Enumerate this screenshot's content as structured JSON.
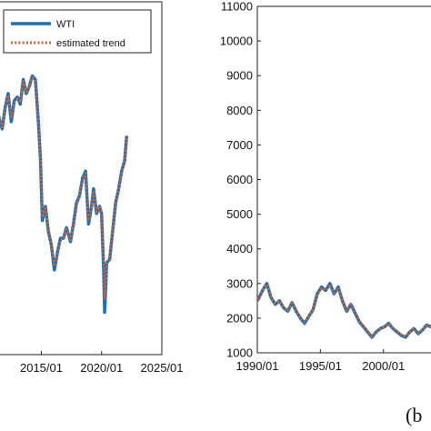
{
  "chart_data": [
    {
      "type": "line",
      "panel": "left",
      "title": "",
      "xlabel": "",
      "ylabel": "",
      "x_ticks": [
        "2015/01",
        "2020/01",
        "2025/01"
      ],
      "xlim": [
        "2011/06",
        "2025/01"
      ],
      "ylim": [
        0,
        1
      ],
      "y_ticks_visible": false,
      "legend_position": "top-left",
      "series": [
        {
          "name": "WTI",
          "color": "#1f6fb4",
          "style": "solid",
          "points": [
            [
              "2011/06",
              0.68
            ],
            [
              "2011/10",
              0.64
            ],
            [
              "2012/01",
              0.7
            ],
            [
              "2012/04",
              0.74
            ],
            [
              "2012/07",
              0.66
            ],
            [
              "2012/10",
              0.72
            ],
            [
              "2013/01",
              0.73
            ],
            [
              "2013/04",
              0.71
            ],
            [
              "2013/07",
              0.78
            ],
            [
              "2013/10",
              0.74
            ],
            [
              "2014/01",
              0.76
            ],
            [
              "2014/04",
              0.79
            ],
            [
              "2014/07",
              0.78
            ],
            [
              "2014/10",
              0.66
            ],
            [
              "2014/12",
              0.56
            ],
            [
              "2015/02",
              0.38
            ],
            [
              "2015/05",
              0.42
            ],
            [
              "2015/08",
              0.35
            ],
            [
              "2015/11",
              0.31
            ],
            [
              "2016/02",
              0.24
            ],
            [
              "2016/05",
              0.29
            ],
            [
              "2016/08",
              0.33
            ],
            [
              "2016/11",
              0.33
            ],
            [
              "2017/02",
              0.36
            ],
            [
              "2017/06",
              0.32
            ],
            [
              "2017/09",
              0.37
            ],
            [
              "2017/12",
              0.43
            ],
            [
              "2018/03",
              0.45
            ],
            [
              "2018/06",
              0.5
            ],
            [
              "2018/09",
              0.52
            ],
            [
              "2018/12",
              0.37
            ],
            [
              "2019/03",
              0.42
            ],
            [
              "2019/05",
              0.47
            ],
            [
              "2019/08",
              0.4
            ],
            [
              "2019/11",
              0.42
            ],
            [
              "2020/01",
              0.4
            ],
            [
              "2020/03",
              0.24
            ],
            [
              "2020/04",
              0.12
            ],
            [
              "2020/06",
              0.26
            ],
            [
              "2020/09",
              0.27
            ],
            [
              "2020/12",
              0.35
            ],
            [
              "2021/03",
              0.43
            ],
            [
              "2021/06",
              0.47
            ],
            [
              "2021/09",
              0.52
            ],
            [
              "2021/12",
              0.55
            ],
            [
              "2022/02",
              0.62
            ]
          ]
        },
        {
          "name": "estimated trend",
          "color": "#d4622a",
          "style": "dotted",
          "points": [
            [
              "2011/06",
              0.68
            ],
            [
              "2011/10",
              0.645
            ],
            [
              "2012/01",
              0.695
            ],
            [
              "2012/04",
              0.735
            ],
            [
              "2012/07",
              0.67
            ],
            [
              "2012/10",
              0.715
            ],
            [
              "2013/01",
              0.725
            ],
            [
              "2013/04",
              0.715
            ],
            [
              "2013/07",
              0.775
            ],
            [
              "2013/10",
              0.745
            ],
            [
              "2014/01",
              0.76
            ],
            [
              "2014/04",
              0.785
            ],
            [
              "2014/07",
              0.775
            ],
            [
              "2014/10",
              0.665
            ],
            [
              "2014/12",
              0.565
            ],
            [
              "2015/02",
              0.39
            ],
            [
              "2015/05",
              0.415
            ],
            [
              "2015/08",
              0.355
            ],
            [
              "2015/11",
              0.315
            ],
            [
              "2016/02",
              0.25
            ],
            [
              "2016/05",
              0.29
            ],
            [
              "2016/08",
              0.325
            ],
            [
              "2016/11",
              0.33
            ],
            [
              "2017/02",
              0.355
            ],
            [
              "2017/06",
              0.325
            ],
            [
              "2017/09",
              0.365
            ],
            [
              "2017/12",
              0.425
            ],
            [
              "2018/03",
              0.45
            ],
            [
              "2018/06",
              0.495
            ],
            [
              "2018/09",
              0.515
            ],
            [
              "2018/12",
              0.38
            ],
            [
              "2019/03",
              0.415
            ],
            [
              "2019/05",
              0.465
            ],
            [
              "2019/08",
              0.405
            ],
            [
              "2019/11",
              0.42
            ],
            [
              "2020/01",
              0.4
            ],
            [
              "2020/03",
              0.26
            ],
            [
              "2020/04",
              0.16
            ],
            [
              "2020/06",
              0.26
            ],
            [
              "2020/09",
              0.275
            ],
            [
              "2020/12",
              0.35
            ],
            [
              "2021/03",
              0.425
            ],
            [
              "2021/06",
              0.47
            ],
            [
              "2021/09",
              0.515
            ],
            [
              "2021/12",
              0.55
            ],
            [
              "2022/02",
              0.615
            ]
          ]
        }
      ]
    },
    {
      "type": "line",
      "panel": "right",
      "title": "",
      "xlabel": "",
      "ylabel": "",
      "x_ticks": [
        "1990/01",
        "1995/01",
        "2000/01"
      ],
      "xlim": [
        "1990/01",
        "2004/06"
      ],
      "ylim": [
        1000,
        11000
      ],
      "y_ticks": [
        1000,
        2000,
        3000,
        4000,
        5000,
        6000,
        7000,
        8000,
        9000,
        10000,
        11000
      ],
      "series": [
        {
          "name": "",
          "color": "#1f6fb4",
          "style": "solid",
          "points": [
            [
              "1990/01",
              2500
            ],
            [
              "1990/06",
              2800
            ],
            [
              "1990/10",
              3000
            ],
            [
              "1991/02",
              2600
            ],
            [
              "1991/06",
              2400
            ],
            [
              "1991/10",
              2500
            ],
            [
              "1992/02",
              2300
            ],
            [
              "1992/06",
              2200
            ],
            [
              "1992/10",
              2450
            ],
            [
              "1993/02",
              2200
            ],
            [
              "1993/06",
              2000
            ],
            [
              "1993/10",
              1850
            ],
            [
              "1994/02",
              2050
            ],
            [
              "1994/06",
              2250
            ],
            [
              "1994/10",
              2700
            ],
            [
              "1995/02",
              2900
            ],
            [
              "1995/06",
              2800
            ],
            [
              "1995/10",
              3000
            ],
            [
              "1996/02",
              2700
            ],
            [
              "1996/06",
              2900
            ],
            [
              "1996/10",
              2500
            ],
            [
              "1997/02",
              2200
            ],
            [
              "1997/06",
              2400
            ],
            [
              "1997/10",
              2150
            ],
            [
              "1998/02",
              1900
            ],
            [
              "1998/06",
              1750
            ],
            [
              "1998/10",
              1600
            ],
            [
              "1999/02",
              1450
            ],
            [
              "1999/06",
              1600
            ],
            [
              "1999/10",
              1700
            ],
            [
              "2000/02",
              1750
            ],
            [
              "2000/06",
              1850
            ],
            [
              "2000/10",
              1700
            ],
            [
              "2001/02",
              1600
            ],
            [
              "2001/06",
              1500
            ],
            [
              "2001/10",
              1450
            ],
            [
              "2002/02",
              1600
            ],
            [
              "2002/06",
              1700
            ],
            [
              "2002/10",
              1550
            ],
            [
              "2003/02",
              1650
            ],
            [
              "2003/06",
              1800
            ],
            [
              "2003/10",
              1750
            ],
            [
              "2004/02",
              1900
            ],
            [
              "2004/06",
              1950
            ]
          ]
        },
        {
          "name": "",
          "color": "#d4622a",
          "style": "dotted",
          "points": [
            [
              "1990/01",
              2520
            ],
            [
              "1990/06",
              2790
            ],
            [
              "1990/10",
              2980
            ],
            [
              "1991/02",
              2620
            ],
            [
              "1991/06",
              2420
            ],
            [
              "1991/10",
              2490
            ],
            [
              "1992/02",
              2320
            ],
            [
              "1992/06",
              2220
            ],
            [
              "1992/10",
              2430
            ],
            [
              "1993/02",
              2210
            ],
            [
              "1993/06",
              2020
            ],
            [
              "1993/10",
              1870
            ],
            [
              "1994/02",
              2060
            ],
            [
              "1994/06",
              2260
            ],
            [
              "1994/10",
              2680
            ],
            [
              "1995/02",
              2880
            ],
            [
              "1995/06",
              2810
            ],
            [
              "1995/10",
              2970
            ],
            [
              "1996/02",
              2720
            ],
            [
              "1996/06",
              2880
            ],
            [
              "1996/10",
              2520
            ],
            [
              "1997/02",
              2220
            ],
            [
              "1997/06",
              2390
            ],
            [
              "1997/10",
              2160
            ],
            [
              "1998/02",
              1920
            ],
            [
              "1998/06",
              1770
            ],
            [
              "1998/10",
              1620
            ],
            [
              "1999/02",
              1470
            ],
            [
              "1999/06",
              1610
            ],
            [
              "1999/10",
              1700
            ],
            [
              "2000/02",
              1760
            ],
            [
              "2000/06",
              1840
            ],
            [
              "2000/10",
              1710
            ],
            [
              "2001/02",
              1610
            ],
            [
              "2001/06",
              1520
            ],
            [
              "2001/10",
              1470
            ],
            [
              "2002/02",
              1600
            ],
            [
              "2002/06",
              1690
            ],
            [
              "2002/10",
              1560
            ],
            [
              "2003/02",
              1650
            ],
            [
              "2003/06",
              1790
            ],
            [
              "2003/10",
              1760
            ],
            [
              "2004/02",
              1890
            ],
            [
              "2004/06",
              1940
            ]
          ]
        }
      ]
    }
  ],
  "panel_label_b": "(b"
}
